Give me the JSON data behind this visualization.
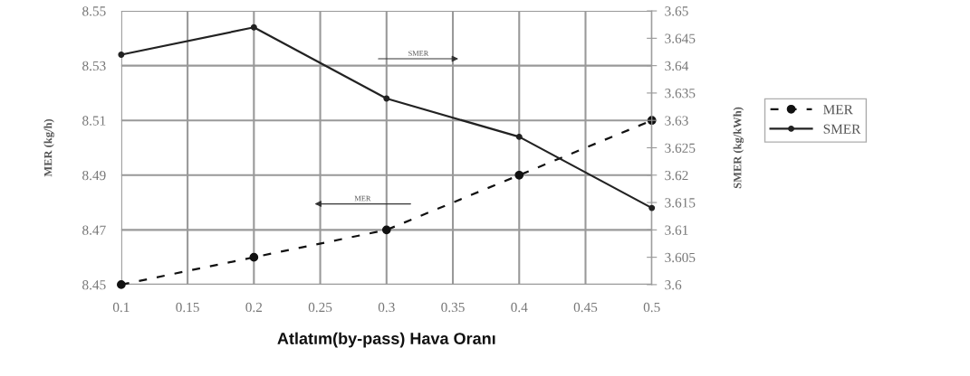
{
  "chart_data": {
    "type": "line",
    "xlabel": "Atlatım(by-pass) Hava Oranı",
    "ylabel": "MER (kg/h)",
    "y2label": "SMER (kg/kWh)",
    "x": [
      0.1,
      0.2,
      0.3,
      0.4,
      0.5
    ],
    "series": [
      {
        "name": "MER",
        "color": "#111111",
        "values": [
          8.45,
          8.46,
          8.47,
          8.49,
          8.51
        ],
        "line_style": "dashed",
        "marker": "circle"
      },
      {
        "name": "SMER",
        "color": "#222222",
        "values": [
          3.642,
          3.647,
          3.634,
          3.627,
          3.614
        ],
        "axis": "y2",
        "line_style": "solid",
        "marker": "circle"
      }
    ],
    "annotations": [
      "SMER",
      "MER"
    ],
    "xlim": [
      0.1,
      0.5
    ],
    "xticks": [
      0.1,
      0.15,
      0.2,
      0.25,
      0.3,
      0.35,
      0.4,
      0.45,
      0.5
    ],
    "ylim": [
      8.45,
      8.55
    ],
    "yticks": [
      8.45,
      8.47,
      8.49,
      8.51,
      8.53,
      8.55
    ],
    "y2lim": [
      3.6,
      3.65
    ],
    "y2ticks": [
      3.6,
      3.605,
      3.61,
      3.615,
      3.62,
      3.625,
      3.63,
      3.635,
      3.64,
      3.645,
      3.65
    ],
    "grid": true,
    "legend": "right"
  }
}
